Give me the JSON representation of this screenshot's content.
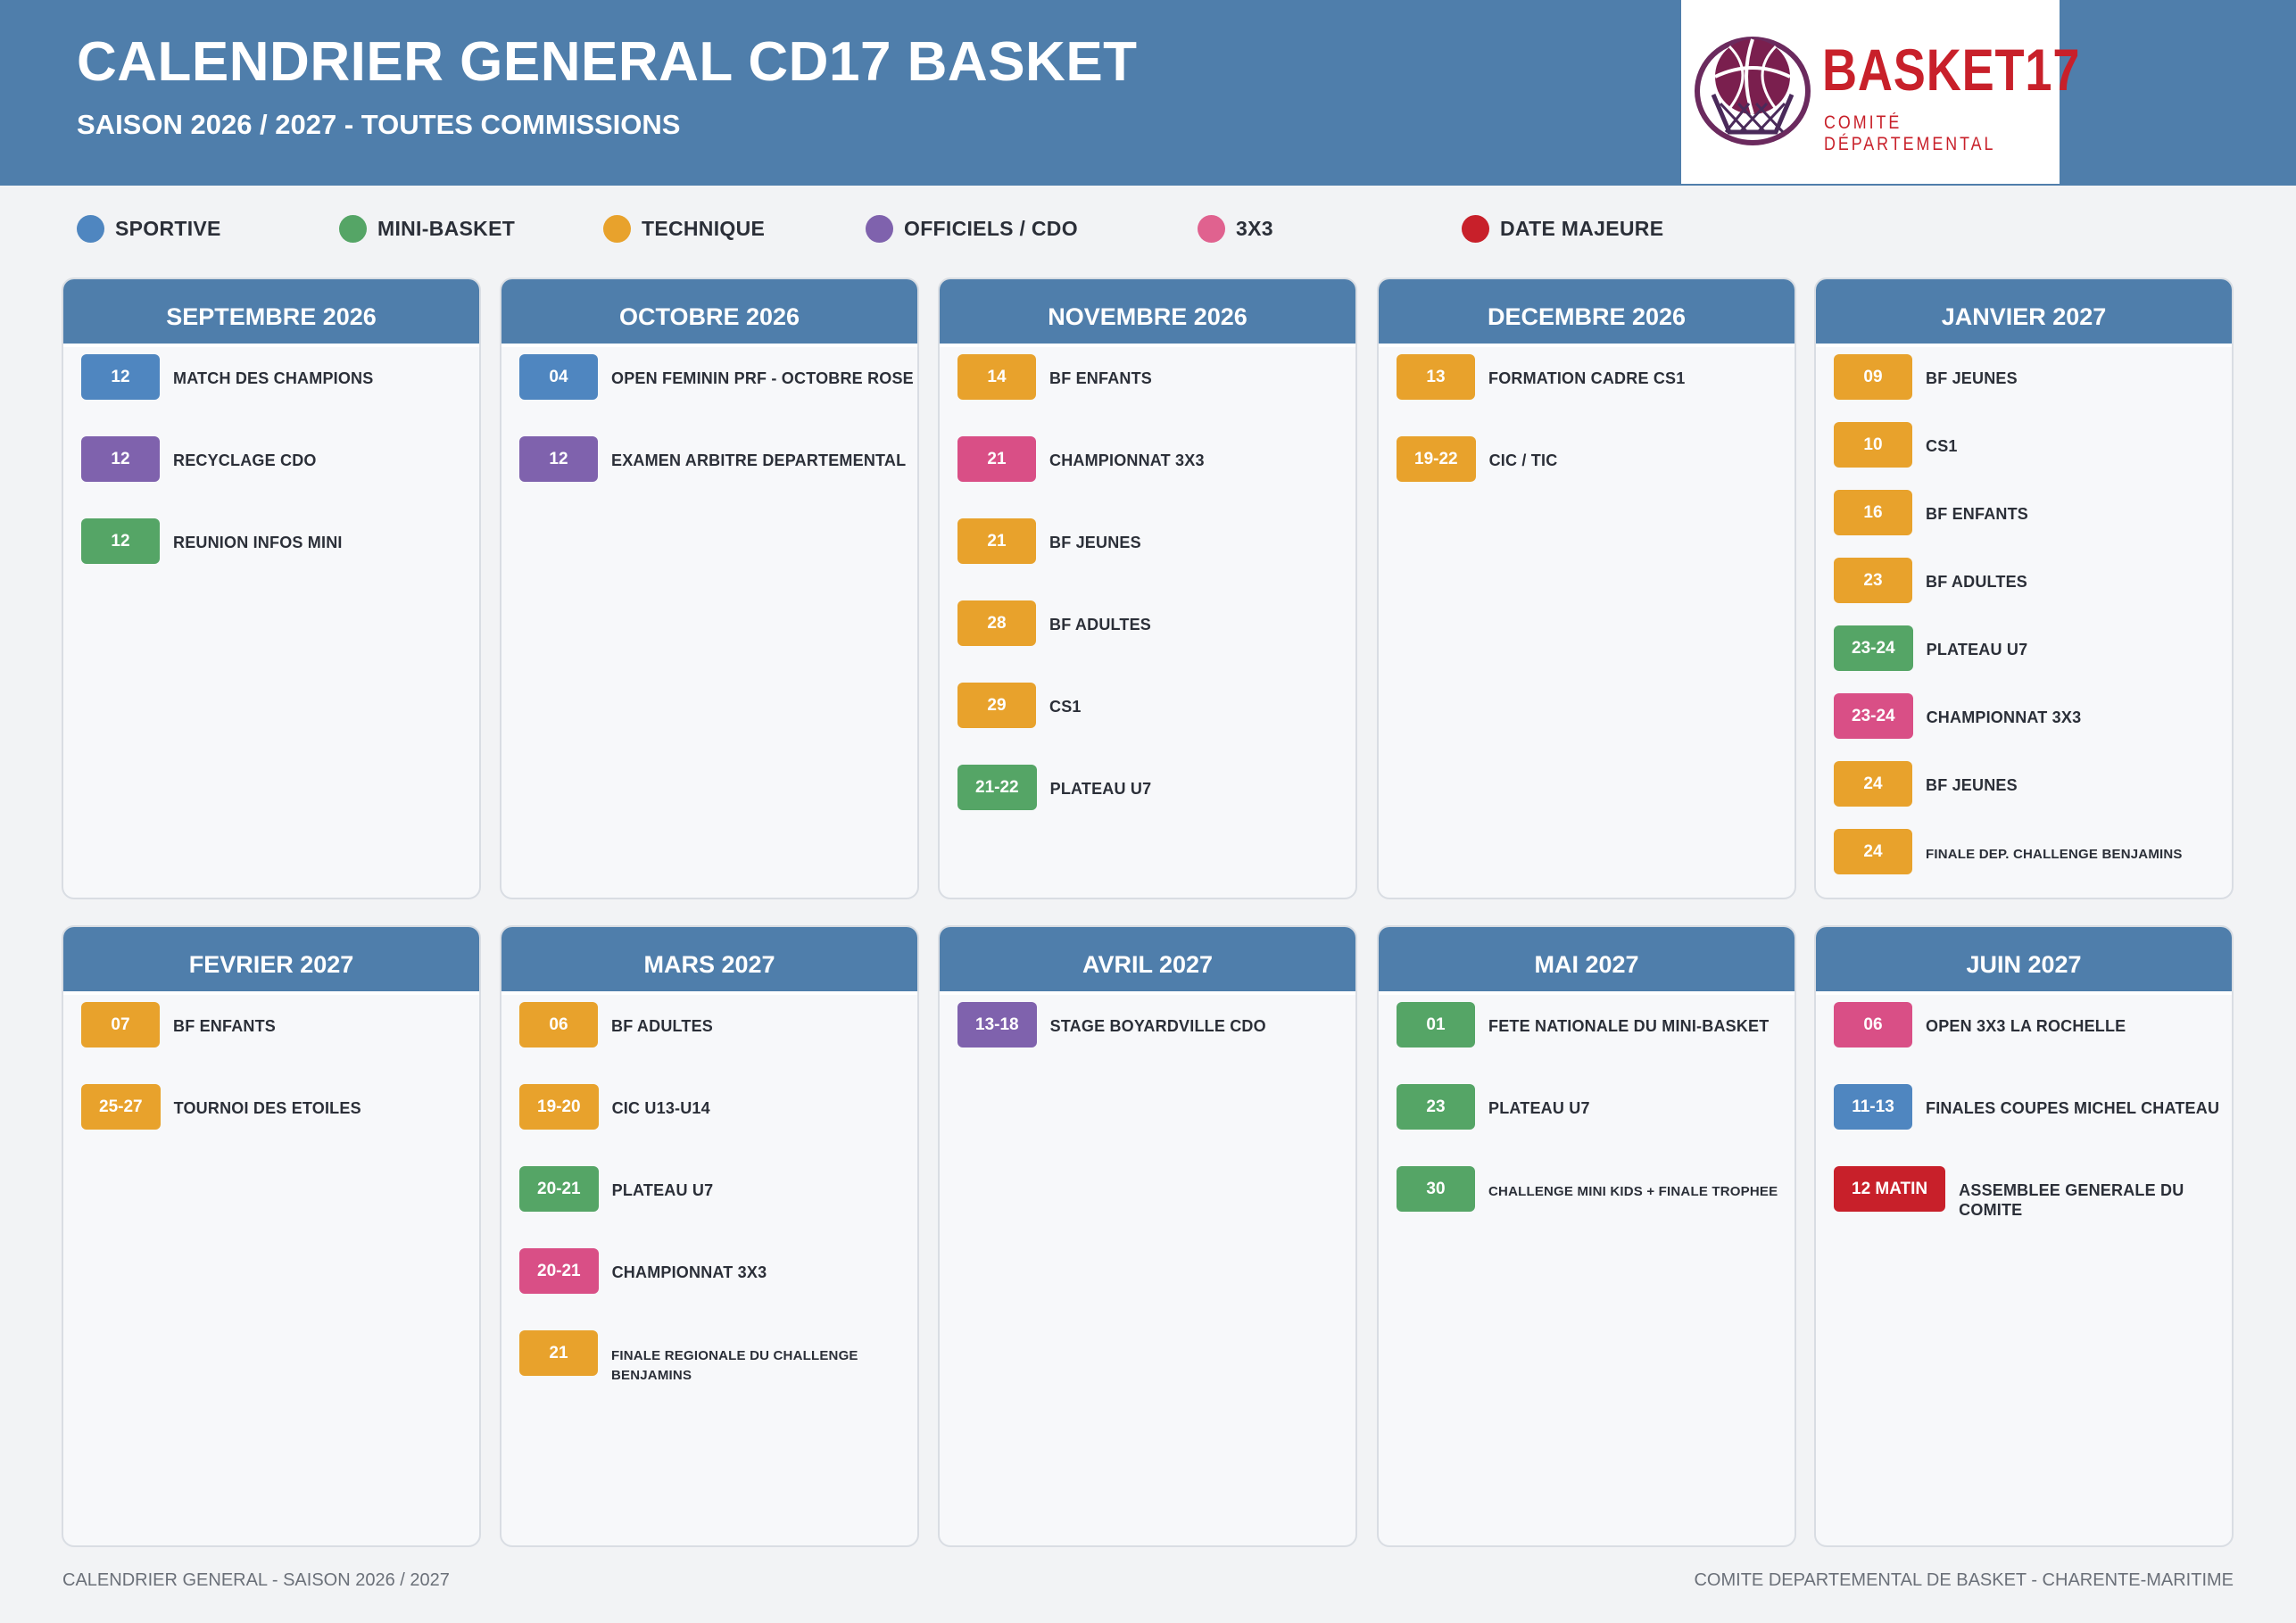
{
  "header": {
    "title": "CALENDRIER GENERAL CD17 BASKET",
    "subtitle": "SAISON 2026 / 2027 - TOUTES COMMISSIONS",
    "logo_text": "BASKET17",
    "logo_sub": "COMITÉ DÉPARTEMENTAL",
    "logo_icon": "basketball-hoop-icon"
  },
  "colors": {
    "header": "#4f7eab",
    "sportive": "#4f86c0",
    "mini": "#55a566",
    "technique": "#e8a22c",
    "officiels": "#7f62ad",
    "x3": "#d94f86",
    "majeure": "#c8202a"
  },
  "legend": [
    {
      "label": "SPORTIVE",
      "color": "#4f86c0"
    },
    {
      "label": "MINI-BASKET",
      "color": "#55a566"
    },
    {
      "label": "TECHNIQUE",
      "color": "#e8a22c"
    },
    {
      "label": "OFFICIELS / CDO",
      "color": "#7f62ad"
    },
    {
      "label": "3X3",
      "color": "#e0628f"
    },
    {
      "label": "DATE MAJEURE",
      "color": "#c8202a"
    }
  ],
  "months": [
    {
      "name": "SEPTEMBRE 2026",
      "events": [
        {
          "date": "12",
          "label": "MATCH DES CHAMPIONS",
          "cat": "sportive"
        },
        {
          "date": "12",
          "label": "RECYCLAGE CDO",
          "cat": "officiels"
        },
        {
          "date": "12",
          "label": "REUNION INFOS MINI",
          "cat": "mini"
        }
      ]
    },
    {
      "name": "OCTOBRE 2026",
      "events": [
        {
          "date": "04",
          "label": "OPEN FEMININ PRF - OCTOBRE ROSE",
          "cat": "sportive"
        },
        {
          "date": "12",
          "label": "EXAMEN ARBITRE DEPARTEMENTAL",
          "cat": "officiels"
        }
      ]
    },
    {
      "name": "NOVEMBRE 2026",
      "events": [
        {
          "date": "14",
          "label": "BF ENFANTS",
          "cat": "technique"
        },
        {
          "date": "21",
          "label": "CHAMPIONNAT 3X3",
          "cat": "x3"
        },
        {
          "date": "21",
          "label": "BF JEUNES",
          "cat": "technique"
        },
        {
          "date": "28",
          "label": "BF ADULTES",
          "cat": "technique"
        },
        {
          "date": "29",
          "label": "CS1",
          "cat": "technique"
        },
        {
          "date": "21-22",
          "label": "PLATEAU U7",
          "cat": "mini"
        }
      ]
    },
    {
      "name": "DECEMBRE 2026",
      "events": [
        {
          "date": "13",
          "label": "FORMATION CADRE CS1",
          "cat": "technique"
        },
        {
          "date": "19-22",
          "label": "CIC / TIC",
          "cat": "technique"
        }
      ]
    },
    {
      "name": "JANVIER 2027",
      "compact": true,
      "events": [
        {
          "date": "09",
          "label": "BF JEUNES",
          "cat": "technique"
        },
        {
          "date": "10",
          "label": "CS1",
          "cat": "technique"
        },
        {
          "date": "16",
          "label": "BF ENFANTS",
          "cat": "technique"
        },
        {
          "date": "23",
          "label": "BF ADULTES",
          "cat": "technique"
        },
        {
          "date": "23-24",
          "label": "PLATEAU U7",
          "cat": "mini"
        },
        {
          "date": "23-24",
          "label": "CHAMPIONNAT 3X3",
          "cat": "x3"
        },
        {
          "date": "24",
          "label": "BF JEUNES",
          "cat": "technique"
        },
        {
          "date": "24",
          "label": "FINALE DEP. CHALLENGE BENJAMINS",
          "cat": "technique",
          "small": true
        }
      ]
    },
    {
      "name": "FEVRIER 2027",
      "events": [
        {
          "date": "07",
          "label": "BF ENFANTS",
          "cat": "technique"
        },
        {
          "date": "25-27",
          "label": "TOURNOI DES ETOILES",
          "cat": "technique"
        }
      ]
    },
    {
      "name": "MARS 2027",
      "events": [
        {
          "date": "06",
          "label": "BF ADULTES",
          "cat": "technique"
        },
        {
          "date": "19-20",
          "label": "CIC U13-U14",
          "cat": "technique"
        },
        {
          "date": "20-21",
          "label": "PLATEAU U7",
          "cat": "mini"
        },
        {
          "date": "20-21",
          "label": "CHAMPIONNAT 3X3",
          "cat": "x3"
        },
        {
          "date": "21",
          "label": "FINALE REGIONALE DU CHALLENGE BENJAMINS",
          "cat": "technique",
          "small": true
        }
      ]
    },
    {
      "name": "AVRIL 2027",
      "events": [
        {
          "date": "13-18",
          "label": "STAGE BOYARDVILLE CDO",
          "cat": "officiels"
        }
      ]
    },
    {
      "name": "MAI 2027",
      "events": [
        {
          "date": "01",
          "label": "FETE NATIONALE DU MINI-BASKET",
          "cat": "mini"
        },
        {
          "date": "23",
          "label": "PLATEAU U7",
          "cat": "mini"
        },
        {
          "date": "30",
          "label": "CHALLENGE MINI KIDS + FINALE TROPHEE",
          "cat": "mini",
          "small": true
        }
      ]
    },
    {
      "name": "JUIN 2027",
      "events": [
        {
          "date": "06",
          "label": "OPEN 3X3 LA ROCHELLE",
          "cat": "x3"
        },
        {
          "date": "11-13",
          "label": "FINALES COUPES MICHEL CHATEAU",
          "cat": "sportive"
        },
        {
          "date": "12 MATIN",
          "label": "ASSEMBLEE GENERALE DU COMITE",
          "cat": "majeure"
        }
      ]
    }
  ],
  "footer": {
    "left": "CALENDRIER GENERAL - SAISON 2026 / 2027",
    "right": "COMITE DEPARTEMENTAL DE BASKET - CHARENTE-MARITIME"
  }
}
